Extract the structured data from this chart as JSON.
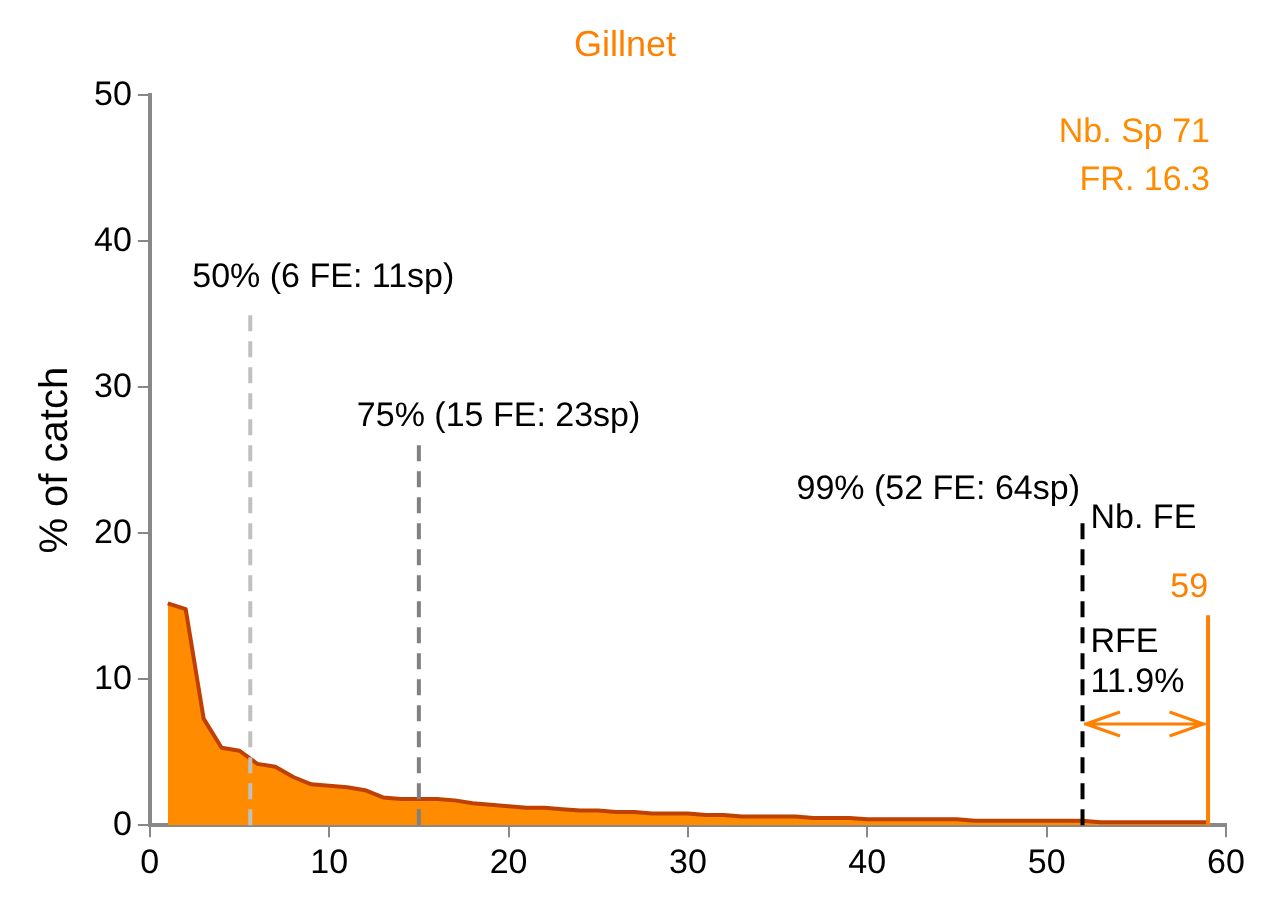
{
  "chart_data": {
    "type": "area",
    "title": "Gillnet",
    "ylabel": "% of catch",
    "x": [
      1,
      2,
      3,
      4,
      5,
      6,
      7,
      8,
      9,
      10,
      11,
      12,
      13,
      14,
      15,
      16,
      17,
      18,
      19,
      20,
      21,
      22,
      23,
      24,
      25,
      26,
      27,
      28,
      29,
      30,
      31,
      32,
      33,
      34,
      35,
      36,
      37,
      38,
      39,
      40,
      41,
      42,
      43,
      44,
      45,
      46,
      47,
      48,
      49,
      50,
      51,
      52,
      53,
      54,
      55,
      56,
      57,
      58,
      59
    ],
    "series": [
      {
        "color": "#ff8c00",
        "values": [
          15.2,
          14.8,
          7.3,
          5.3,
          5.1,
          4.2,
          4.0,
          3.3,
          2.8,
          2.7,
          2.6,
          2.4,
          1.9,
          1.8,
          1.8,
          1.8,
          1.7,
          1.5,
          1.4,
          1.3,
          1.2,
          1.2,
          1.1,
          1.0,
          1.0,
          0.9,
          0.9,
          0.8,
          0.8,
          0.8,
          0.7,
          0.7,
          0.6,
          0.6,
          0.6,
          0.6,
          0.5,
          0.5,
          0.5,
          0.4,
          0.4,
          0.4,
          0.4,
          0.4,
          0.4,
          0.3,
          0.3,
          0.3,
          0.3,
          0.3,
          0.3,
          0.3,
          0.2,
          0.2,
          0.2,
          0.2,
          0.2,
          0.2,
          0.2
        ]
      }
    ],
    "xlim": [
      0,
      60
    ],
    "xticks": [
      0,
      10,
      20,
      30,
      40,
      50,
      60
    ],
    "ylim": [
      0,
      50
    ],
    "yticks": [
      0,
      10,
      20,
      30,
      40,
      50
    ],
    "grid": false,
    "legend": false,
    "marker": "none",
    "ref_lines": [
      {
        "axis": "x",
        "value": 5.6,
        "label": "50% (6 FE: 11sp)",
        "color": "#c0c0c0",
        "line_style": "dashed"
      },
      {
        "axis": "x",
        "value": 15,
        "label": "75% (15 FE: 23sp)",
        "color": "#808080",
        "line_style": "dashed"
      },
      {
        "axis": "x",
        "value": 52,
        "label": "99% (52 FE: 64sp)",
        "color": "#000000",
        "line_style": "dashed"
      },
      {
        "axis": "x",
        "value": 59,
        "label": "59",
        "color": "#ff8000",
        "line_style": "solid"
      }
    ],
    "annotations": [
      "Nb. Sp 71",
      "FR. 16.3",
      {
        "text": "Nb. FE",
        "x": 52,
        "y": 21
      },
      {
        "text": "RFE\n11.9%",
        "x": 52,
        "y": 12.5
      }
    ]
  }
}
